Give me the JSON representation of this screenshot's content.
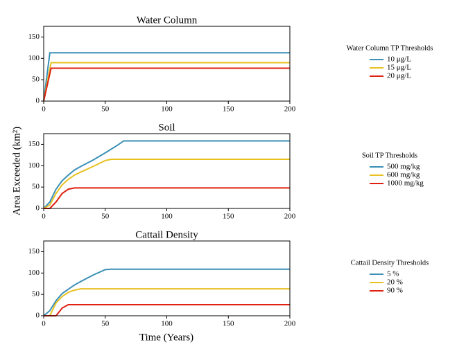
{
  "chart_data": [
    {
      "type": "line",
      "title": "Water Column",
      "legend_title": "Water Column TP Thresholds",
      "xlim": [
        0,
        200
      ],
      "xticks": [
        0,
        50,
        100,
        150,
        200
      ],
      "ylim": [
        0,
        175
      ],
      "yticks": [
        0,
        50,
        100,
        150
      ],
      "series": [
        {
          "name": "10 μg/L",
          "color": "#3a8fb7",
          "x": [
            0,
            5,
            200
          ],
          "values": [
            0,
            113,
            113
          ]
        },
        {
          "name": "15 μg/L",
          "color": "#e8c020",
          "x": [
            0,
            6,
            200
          ],
          "values": [
            0,
            90,
            90
          ]
        },
        {
          "name": "20 μg/L",
          "color": "#e02010",
          "x": [
            0,
            6,
            200
          ],
          "values": [
            0,
            77,
            77
          ]
        }
      ]
    },
    {
      "type": "line",
      "title": "Soil",
      "legend_title": "Soil TP Thresholds",
      "ylabel": "Area Exceeded (km²)",
      "xlim": [
        0,
        200
      ],
      "xticks": [
        0,
        50,
        100,
        150,
        200
      ],
      "ylim": [
        0,
        175
      ],
      "yticks": [
        0,
        50,
        100,
        150
      ],
      "series": [
        {
          "name": "500 mg/kg",
          "color": "#3a8fb7",
          "x": [
            0,
            5,
            10,
            15,
            20,
            25,
            30,
            40,
            50,
            60,
            65,
            200
          ],
          "values": [
            0,
            15,
            45,
            65,
            78,
            90,
            98,
            113,
            130,
            148,
            158,
            158
          ]
        },
        {
          "name": "600 mg/kg",
          "color": "#e8c020",
          "x": [
            0,
            5,
            10,
            15,
            20,
            25,
            30,
            40,
            50,
            55,
            200
          ],
          "values": [
            0,
            8,
            35,
            55,
            68,
            78,
            85,
            98,
            112,
            115,
            115
          ]
        },
        {
          "name": "1000 mg/kg",
          "color": "#e02010",
          "x": [
            0,
            5,
            10,
            15,
            20,
            25,
            200
          ],
          "values": [
            0,
            0,
            15,
            35,
            45,
            48,
            48
          ]
        }
      ]
    },
    {
      "type": "line",
      "title": "Cattail Density",
      "legend_title": "Cattail Density Thresholds",
      "xlabel": "Time (Years)",
      "xlim": [
        0,
        200
      ],
      "xticks": [
        0,
        50,
        100,
        150,
        200
      ],
      "ylim": [
        0,
        175
      ],
      "yticks": [
        0,
        50,
        100,
        150
      ],
      "series": [
        {
          "name": "5 %",
          "color": "#3a8fb7",
          "x": [
            0,
            5,
            10,
            15,
            20,
            25,
            30,
            40,
            50,
            55,
            200
          ],
          "values": [
            0,
            12,
            35,
            52,
            62,
            72,
            80,
            95,
            108,
            109,
            109
          ]
        },
        {
          "name": "20 %",
          "color": "#e8c020",
          "x": [
            0,
            5,
            10,
            15,
            20,
            25,
            30,
            200
          ],
          "values": [
            0,
            0,
            30,
            45,
            55,
            60,
            63,
            63
          ]
        },
        {
          "name": "90 %",
          "color": "#e02010",
          "x": [
            0,
            10,
            15,
            20,
            200
          ],
          "values": [
            0,
            0,
            18,
            26,
            26
          ]
        }
      ]
    }
  ]
}
